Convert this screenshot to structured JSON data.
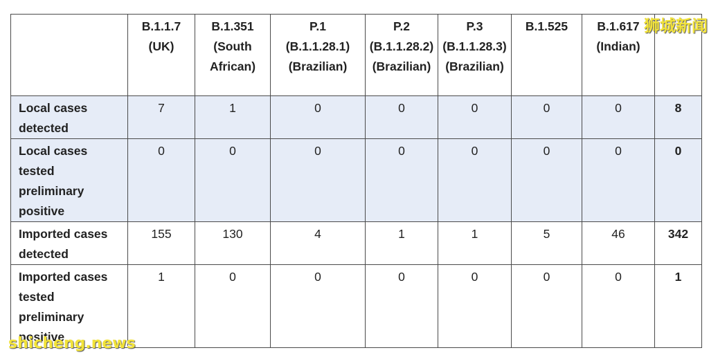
{
  "table": {
    "header": [
      [],
      [
        "B.1.1.7",
        "(UK)"
      ],
      [
        "B.1.351",
        "(South",
        "African)"
      ],
      [
        "P.1",
        "(B.1.1.28.1)",
        "(Brazilian)"
      ],
      [
        "P.2",
        "(B.1.1.28.2)",
        "(Brazilian)"
      ],
      [
        "P.3",
        "(B.1.1.28.3)",
        "(Brazilian)"
      ],
      [
        "B.1.525"
      ],
      [
        "B.1.617",
        "(Indian)"
      ],
      []
    ],
    "rows": [
      {
        "label": [
          "Local cases",
          "detected"
        ],
        "values": [
          7,
          1,
          0,
          0,
          0,
          0,
          0,
          8
        ]
      },
      {
        "label": [
          "Local cases",
          "tested",
          "preliminary",
          "positive"
        ],
        "values": [
          0,
          0,
          0,
          0,
          0,
          0,
          0,
          0
        ]
      },
      {
        "label": [
          "Imported cases",
          "detected"
        ],
        "values": [
          155,
          130,
          4,
          1,
          1,
          5,
          46,
          342
        ]
      },
      {
        "label": [
          "Imported cases",
          "tested",
          "preliminary",
          "positive"
        ],
        "values": [
          1,
          0,
          0,
          0,
          0,
          0,
          0,
          1
        ]
      }
    ]
  },
  "watermarks": {
    "top": "狮城新闻",
    "bottom": "shicheng.news"
  }
}
